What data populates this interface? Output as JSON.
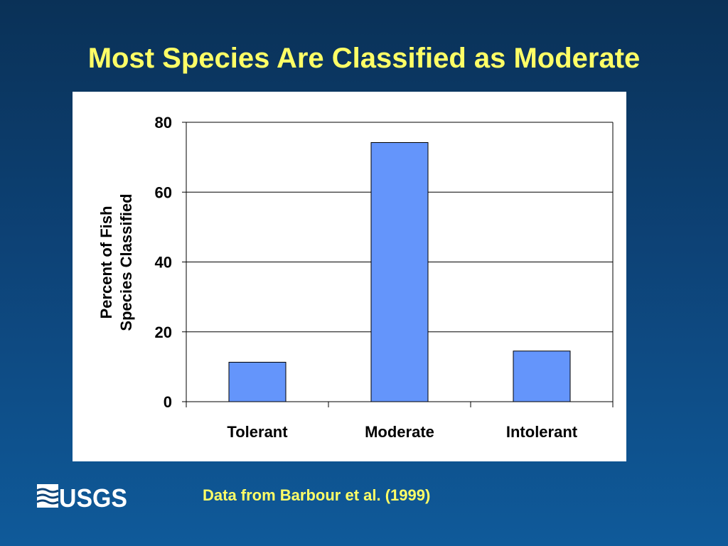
{
  "slide": {
    "title": "Most Species Are Classified as Moderate",
    "source_note": "Data from Barbour et al. (1999)",
    "logo_text": "USGS"
  },
  "colors": {
    "background_top": "#0a3157",
    "background_bottom": "#0f5a9a",
    "title_color": "#ffff66",
    "bar_fill": "#6495fb",
    "bar_stroke": "#000000"
  },
  "chart_data": {
    "type": "bar",
    "categories": [
      "Tolerant",
      "Moderate",
      "Intolerant"
    ],
    "values": [
      11.3,
      74.2,
      14.5
    ],
    "ylabel_lines": [
      "Percent of Fish",
      "Species Classified"
    ],
    "xlabel": "",
    "ylim": [
      0,
      80
    ],
    "yticks": [
      0,
      20,
      40,
      60,
      80
    ],
    "grid": true,
    "legend": "none"
  }
}
